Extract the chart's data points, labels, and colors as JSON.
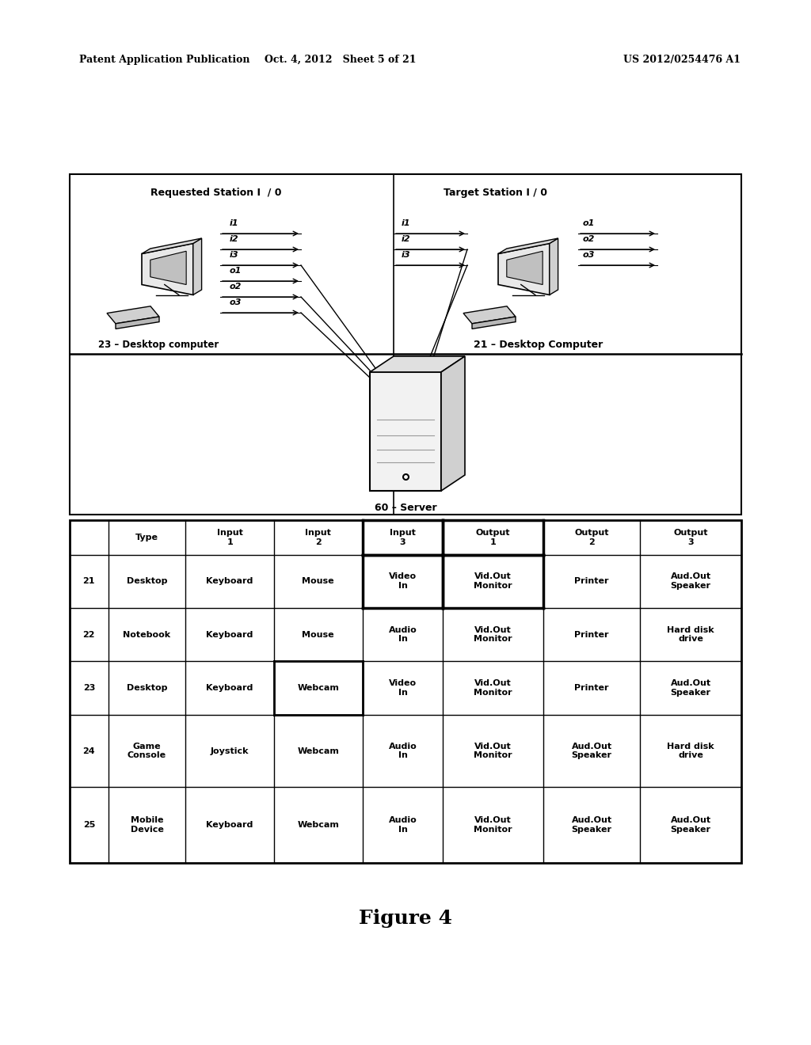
{
  "bg_color": "#ffffff",
  "header_text_top": "Patent Application Publication",
  "header_text_mid": "Oct. 4, 2012   Sheet 5 of 21",
  "header_text_right": "US 2012/0254476 A1",
  "figure_label": "Figure 4",
  "diagram": {
    "left_label": "Requested Station I  / 0",
    "right_label": "Target Station I / 0",
    "left_computer_label": "23 – Desktop computer",
    "right_computer_label": "21 – Desktop Computer",
    "server_label": "60 – Server",
    "left_arrows": [
      "i1",
      "i2",
      "i3",
      "o1",
      "o2",
      "o3"
    ],
    "right_inputs": [
      "i1",
      "i2",
      "i3"
    ],
    "right_outputs": [
      "o1",
      "o2",
      "o3"
    ]
  },
  "table": {
    "headers": [
      "",
      "Type",
      "Input\n1",
      "Input\n2",
      "Input\n3",
      "Output\n1",
      "Output\n2",
      "Output\n3"
    ],
    "rows": [
      [
        "21",
        "Desktop",
        "Keyboard",
        "Mouse",
        "Video\nIn",
        "Vid.Out\nMonitor",
        "Printer",
        "Aud.Out\nSpeaker"
      ],
      [
        "22",
        "Notebook",
        "Keyboard",
        "Mouse",
        "Audio\nIn",
        "Vid.Out\nMonitor",
        "Printer",
        "Hard disk\ndrive"
      ],
      [
        "23",
        "Desktop",
        "Keyboard",
        "Webcam",
        "Video\nIn",
        "Vid.Out\nMonitor",
        "Printer",
        "Aud.Out\nSpeaker"
      ],
      [
        "24",
        "Game\nConsole",
        "Joystick",
        "Webcam",
        "Audio\nIn",
        "Vid.Out\nMonitor",
        "Aud.Out\nSpeaker",
        "Hard disk\ndrive"
      ],
      [
        "25",
        "Mobile\nDevice",
        "Keyboard",
        "Webcam",
        "Audio\nIn",
        "Vid.Out\nMonitor",
        "Aud.Out\nSpeaker",
        "Aud.Out\nSpeaker"
      ]
    ]
  }
}
